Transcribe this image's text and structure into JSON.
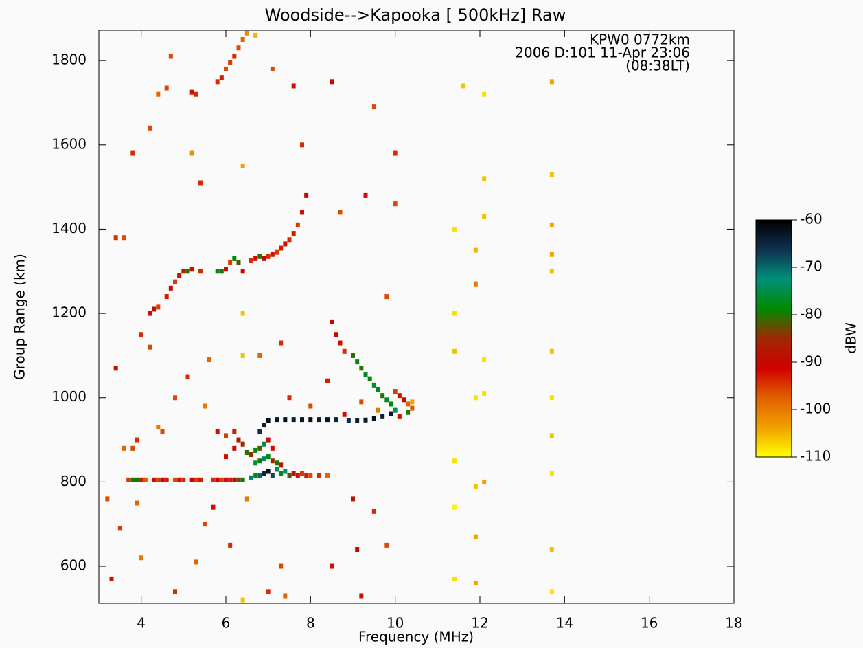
{
  "chart_data": {
    "type": "heatmap",
    "title": "Woodside-->Kapooka [ 500kHz] Raw",
    "annotations": [
      "KPW0 0772km",
      "2006 D:101 11-Apr 23:06",
      "(08:38LT)"
    ],
    "xlabel": "Frequency (MHz)",
    "ylabel": "Group Range (km)",
    "xlim": [
      3,
      18
    ],
    "xticks": [
      4,
      6,
      8,
      10,
      12,
      14,
      16,
      18
    ],
    "ylim": [
      512,
      1872
    ],
    "yticks": [
      600,
      800,
      1000,
      1200,
      1400,
      1600,
      1800
    ],
    "colorbar_label": "dBW",
    "clim": [
      -110,
      -60
    ],
    "cticks": [
      -60,
      -70,
      -80,
      -90,
      -100,
      -110
    ],
    "colorscale": [
      "#ffff00",
      "#f0a000",
      "#e06000",
      "#d00000",
      "#a02800",
      "#008a00",
      "#00907a",
      "#103050",
      "#000000"
    ],
    "cells": [
      [
        3.7,
        805,
        -95
      ],
      [
        3.8,
        805,
        -80
      ],
      [
        3.9,
        805,
        -80
      ],
      [
        4.0,
        805,
        -93
      ],
      [
        4.1,
        805,
        -97
      ],
      [
        4.3,
        805,
        -92
      ],
      [
        4.4,
        805,
        -95
      ],
      [
        4.5,
        805,
        -90
      ],
      [
        4.6,
        805,
        -93
      ],
      [
        4.8,
        805,
        -96
      ],
      [
        4.9,
        805,
        -92
      ],
      [
        5.0,
        805,
        -94
      ],
      [
        5.2,
        805,
        -91
      ],
      [
        5.3,
        805,
        -95
      ],
      [
        5.4,
        805,
        -93
      ],
      [
        5.7,
        805,
        -94
      ],
      [
        5.8,
        805,
        -91
      ],
      [
        5.9,
        805,
        -95
      ],
      [
        6.0,
        805,
        -92
      ],
      [
        6.1,
        805,
        -93
      ],
      [
        6.2,
        805,
        -90
      ],
      [
        6.3,
        805,
        -82
      ],
      [
        6.4,
        805,
        -80
      ],
      [
        6.6,
        810,
        -72
      ],
      [
        6.7,
        815,
        -78
      ],
      [
        6.8,
        815,
        -70
      ],
      [
        6.9,
        820,
        -65
      ],
      [
        7.0,
        825,
        -62
      ],
      [
        7.1,
        815,
        -68
      ],
      [
        7.2,
        830,
        -75
      ],
      [
        7.3,
        820,
        -78
      ],
      [
        7.4,
        825,
        -72
      ],
      [
        7.5,
        815,
        -82
      ],
      [
        7.6,
        820,
        -88
      ],
      [
        7.7,
        815,
        -92
      ],
      [
        7.8,
        820,
        -95
      ],
      [
        7.9,
        815,
        -93
      ],
      [
        8.0,
        815,
        -96
      ],
      [
        8.2,
        815,
        -94
      ],
      [
        8.4,
        815,
        -98
      ],
      [
        6.7,
        845,
        -76
      ],
      [
        6.8,
        850,
        -80
      ],
      [
        6.9,
        855,
        -72
      ],
      [
        7.0,
        860,
        -78
      ],
      [
        7.1,
        850,
        -85
      ],
      [
        7.2,
        845,
        -80
      ],
      [
        7.3,
        840,
        -88
      ],
      [
        6.6,
        865,
        -85
      ],
      [
        6.7,
        875,
        -78
      ],
      [
        6.8,
        880,
        -82
      ],
      [
        6.9,
        890,
        -75
      ],
      [
        7.0,
        900,
        -88
      ],
      [
        7.1,
        880,
        -92
      ],
      [
        6.0,
        860,
        -92
      ],
      [
        6.2,
        880,
        -90
      ],
      [
        6.3,
        900,
        -88
      ],
      [
        6.4,
        890,
        -85
      ],
      [
        6.5,
        870,
        -80
      ],
      [
        5.8,
        920,
        -92
      ],
      [
        6.0,
        910,
        -95
      ],
      [
        6.2,
        920,
        -93
      ],
      [
        6.8,
        920,
        -66
      ],
      [
        6.9,
        935,
        -64
      ],
      [
        7.0,
        945,
        -62
      ],
      [
        7.2,
        948,
        -63
      ],
      [
        7.4,
        948,
        -62
      ],
      [
        7.6,
        948,
        -64
      ],
      [
        7.8,
        948,
        -63
      ],
      [
        8.0,
        948,
        -62
      ],
      [
        8.2,
        948,
        -64
      ],
      [
        8.4,
        948,
        -63
      ],
      [
        8.6,
        948,
        -65
      ],
      [
        8.9,
        945,
        -66
      ],
      [
        9.1,
        945,
        -64
      ],
      [
        9.3,
        947,
        -63
      ],
      [
        9.5,
        950,
        -62
      ],
      [
        9.7,
        955,
        -64
      ],
      [
        9.9,
        962,
        -63
      ],
      [
        10.0,
        970,
        -74
      ],
      [
        9.0,
        1100,
        -80
      ],
      [
        9.1,
        1085,
        -78
      ],
      [
        9.2,
        1070,
        -80
      ],
      [
        9.3,
        1055,
        -77
      ],
      [
        9.4,
        1045,
        -79
      ],
      [
        9.5,
        1030,
        -76
      ],
      [
        9.6,
        1020,
        -78
      ],
      [
        9.7,
        1005,
        -80
      ],
      [
        9.8,
        995,
        -77
      ],
      [
        9.9,
        985,
        -79
      ],
      [
        10.0,
        1015,
        -95
      ],
      [
        10.1,
        1005,
        -92
      ],
      [
        10.2,
        995,
        -90
      ],
      [
        10.3,
        985,
        -98
      ],
      [
        10.4,
        975,
        -97
      ],
      [
        10.3,
        965,
        -80
      ],
      [
        10.1,
        955,
        -92
      ],
      [
        10.4,
        990,
        -104
      ],
      [
        7.5,
        1000,
        -94
      ],
      [
        8.0,
        980,
        -96
      ],
      [
        8.8,
        960,
        -92
      ],
      [
        9.2,
        990,
        -96
      ],
      [
        9.6,
        970,
        -100
      ],
      [
        8.4,
        1040,
        -93
      ],
      [
        8.5,
        1180,
        -90
      ],
      [
        8.7,
        1130,
        -92
      ],
      [
        8.8,
        1110,
        -94
      ],
      [
        8.6,
        1150,
        -91
      ],
      [
        4.2,
        1200,
        -92
      ],
      [
        4.3,
        1210,
        -88
      ],
      [
        4.4,
        1215,
        -95
      ],
      [
        4.6,
        1240,
        -93
      ],
      [
        4.7,
        1260,
        -90
      ],
      [
        4.8,
        1275,
        -95
      ],
      [
        4.9,
        1290,
        -92
      ],
      [
        5.0,
        1300,
        -86
      ],
      [
        5.1,
        1300,
        -80
      ],
      [
        5.2,
        1305,
        -92
      ],
      [
        5.4,
        1300,
        -94
      ],
      [
        5.8,
        1300,
        -78
      ],
      [
        5.9,
        1300,
        -80
      ],
      [
        6.0,
        1305,
        -92
      ],
      [
        6.1,
        1320,
        -95
      ],
      [
        6.2,
        1330,
        -78
      ],
      [
        6.3,
        1320,
        -82
      ],
      [
        6.4,
        1300,
        -90
      ],
      [
        6.6,
        1325,
        -94
      ],
      [
        6.7,
        1330,
        -92
      ],
      [
        6.8,
        1335,
        -80
      ],
      [
        6.9,
        1330,
        -90
      ],
      [
        7.0,
        1335,
        -94
      ],
      [
        7.1,
        1340,
        -92
      ],
      [
        7.2,
        1345,
        -95
      ],
      [
        7.3,
        1355,
        -93
      ],
      [
        7.4,
        1365,
        -92
      ],
      [
        7.5,
        1375,
        -94
      ],
      [
        7.6,
        1390,
        -93
      ],
      [
        7.7,
        1410,
        -95
      ],
      [
        7.8,
        1440,
        -92
      ],
      [
        7.9,
        1480,
        -90
      ],
      [
        4.4,
        1720,
        -98
      ],
      [
        4.6,
        1735,
        -96
      ],
      [
        5.2,
        1725,
        -92
      ],
      [
        5.3,
        1720,
        -94
      ],
      [
        5.8,
        1750,
        -94
      ],
      [
        5.9,
        1760,
        -93
      ],
      [
        6.0,
        1780,
        -96
      ],
      [
        6.1,
        1795,
        -95
      ],
      [
        6.2,
        1810,
        -94
      ],
      [
        6.3,
        1830,
        -96
      ],
      [
        6.4,
        1850,
        -98
      ],
      [
        6.5,
        1865,
        -102
      ],
      [
        6.7,
        1860,
        -105
      ],
      [
        4.2,
        1640,
        -96
      ],
      [
        11.4,
        1400,
        -108
      ],
      [
        11.4,
        1200,
        -108
      ],
      [
        11.4,
        1110,
        -106
      ],
      [
        11.4,
        850,
        -108
      ],
      [
        11.4,
        740,
        -109
      ],
      [
        11.4,
        570,
        -108
      ],
      [
        11.9,
        1350,
        -105
      ],
      [
        11.9,
        1270,
        -100
      ],
      [
        11.9,
        1000,
        -108
      ],
      [
        11.9,
        790,
        -106
      ],
      [
        11.9,
        670,
        -104
      ],
      [
        11.9,
        560,
        -104
      ],
      [
        12.1,
        1720,
        -108
      ],
      [
        12.1,
        1520,
        -106
      ],
      [
        12.1,
        1430,
        -106
      ],
      [
        12.1,
        1090,
        -108
      ],
      [
        12.1,
        1010,
        -108
      ],
      [
        12.1,
        800,
        -104
      ],
      [
        11.6,
        1740,
        -106
      ],
      [
        13.7,
        1750,
        -104
      ],
      [
        13.7,
        1530,
        -106
      ],
      [
        13.7,
        1410,
        -104
      ],
      [
        13.7,
        1340,
        -104
      ],
      [
        13.7,
        1300,
        -106
      ],
      [
        13.7,
        1110,
        -106
      ],
      [
        13.7,
        1000,
        -108
      ],
      [
        13.7,
        910,
        -106
      ],
      [
        13.7,
        820,
        -108
      ],
      [
        13.7,
        640,
        -106
      ],
      [
        13.7,
        540,
        -108
      ],
      [
        3.4,
        1380,
        -94
      ],
      [
        3.6,
        1380,
        -96
      ],
      [
        3.4,
        1070,
        -90
      ],
      [
        3.6,
        880,
        -98
      ],
      [
        3.8,
        880,
        -96
      ],
      [
        3.9,
        900,
        -94
      ],
      [
        4.4,
        930,
        -100
      ],
      [
        4.5,
        920,
        -96
      ],
      [
        3.2,
        760,
        -96
      ],
      [
        3.5,
        690,
        -95
      ],
      [
        3.9,
        750,
        -98
      ],
      [
        4.0,
        620,
        -100
      ],
      [
        3.3,
        570,
        -92
      ],
      [
        4.8,
        540,
        -94
      ],
      [
        5.3,
        610,
        -98
      ],
      [
        5.5,
        700,
        -96
      ],
      [
        5.7,
        740,
        -92
      ],
      [
        6.1,
        650,
        -94
      ],
      [
        6.5,
        760,
        -100
      ],
      [
        7.3,
        600,
        -96
      ],
      [
        7.0,
        540,
        -94
      ],
      [
        7.4,
        530,
        -98
      ],
      [
        8.5,
        600,
        -92
      ],
      [
        9.1,
        640,
        -90
      ],
      [
        9.2,
        530,
        -92
      ],
      [
        9.0,
        760,
        -88
      ],
      [
        9.5,
        730,
        -94
      ],
      [
        9.8,
        650,
        -96
      ],
      [
        9.3,
        1480,
        -92
      ],
      [
        9.5,
        1690,
        -96
      ],
      [
        8.5,
        1750,
        -90
      ],
      [
        7.8,
        1600,
        -94
      ],
      [
        5.4,
        1510,
        -94
      ],
      [
        5.2,
        1580,
        -102
      ],
      [
        3.8,
        1580,
        -94
      ],
      [
        4.7,
        1810,
        -96
      ],
      [
        7.1,
        1780,
        -96
      ],
      [
        7.6,
        1740,
        -92
      ],
      [
        6.4,
        1550,
        -104
      ],
      [
        6.4,
        1200,
        -106
      ],
      [
        6.4,
        1100,
        -106
      ],
      [
        6.4,
        520,
        -106
      ],
      [
        10.0,
        1580,
        -94
      ],
      [
        10.0,
        1460,
        -96
      ],
      [
        9.8,
        1240,
        -96
      ],
      [
        4.8,
        1000,
        -96
      ],
      [
        5.1,
        1050,
        -94
      ],
      [
        5.6,
        1090,
        -98
      ],
      [
        4.0,
        1150,
        -94
      ],
      [
        4.2,
        1120,
        -96
      ],
      [
        6.8,
        1100,
        -98
      ],
      [
        7.3,
        1130,
        -94
      ],
      [
        8.7,
        1440,
        -96
      ],
      [
        5.5,
        980,
        -100
      ]
    ]
  }
}
